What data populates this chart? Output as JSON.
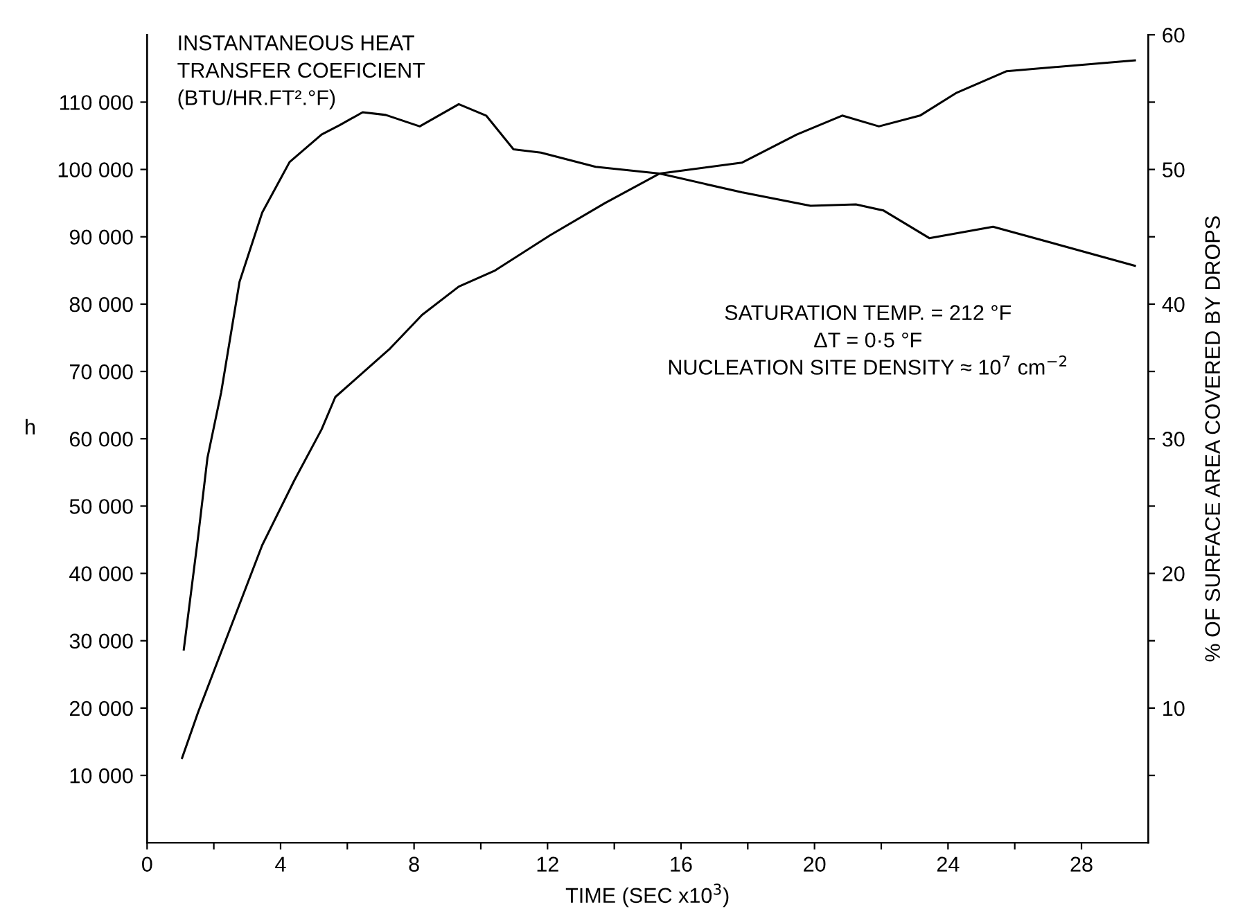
{
  "chart_data": {
    "type": "line",
    "xlabel": "TIME (SEC x10$^{3}$)",
    "ylabel": "h",
    "y2label": "% OF SURFACE AREA COVERED BY DROPS",
    "annotations": [
      "INSTANTANEOUS HEAT\nTRANSFER COEFICIENT\n(BTU/HR.FT².°F)",
      "SATURATION TEMP. = 212 °F\nΔT = 0·5 °F\nNUCLEATION SITE DENSITY ≈ 10$^{7}$ cm$^{−2}$"
    ],
    "series": [
      {
        "color": "#000000",
        "x": [
          1.1,
          1.53,
          1.81,
          2.22,
          2.77,
          3.45,
          4.27,
          5.23,
          5.78,
          6.46,
          7.15,
          8.17,
          9.34,
          10.16,
          10.98,
          11.8,
          13.44,
          15.36,
          17.82,
          19.88,
          21.24,
          22.07,
          23.44,
          25.35,
          29.6
        ],
        "values": [
          28700,
          45500,
          57200,
          66900,
          83300,
          93600,
          101100,
          105200,
          106600,
          108500,
          108100,
          106400,
          109700,
          108000,
          103000,
          102500,
          100400,
          99400,
          96600,
          94600,
          94800,
          93900,
          89800,
          91500,
          85700
        ]
      },
      {
        "color": "#000000",
        "axis": "y2",
        "x": [
          1.05,
          1.53,
          2.49,
          3.45,
          4.41,
          5.23,
          5.64,
          7.28,
          8.24,
          9.34,
          10.43,
          12.07,
          13.72,
          15.36,
          17.82,
          19.47,
          20.83,
          21.93,
          23.16,
          24.26,
          25.76,
          29.6
        ],
        "values": [
          6.3,
          9.7,
          15.9,
          22.1,
          26.9,
          30.7,
          33.1,
          36.7,
          39.2,
          41.3,
          42.5,
          45.1,
          47.5,
          49.7,
          50.5,
          52.6,
          54.0,
          53.2,
          54.0,
          55.7,
          57.3,
          58.1
        ]
      }
    ],
    "xlim": [
      0,
      30
    ],
    "xticks": [
      0,
      {
        "value": 2,
        "label": null
      },
      4,
      {
        "value": 6,
        "label": null
      },
      8,
      {
        "value": 10,
        "label": null
      },
      12,
      {
        "value": 14,
        "label": null
      },
      16,
      {
        "value": 18,
        "label": null
      },
      20,
      {
        "value": 22,
        "label": null
      },
      24,
      {
        "value": 26,
        "label": null
      },
      28
    ],
    "ylim": [
      0,
      120000
    ],
    "yticks": [
      {
        "value": 10000,
        "label": "10 000"
      },
      {
        "value": 20000,
        "label": "20 000"
      },
      {
        "value": 30000,
        "label": "30 000"
      },
      {
        "value": 40000,
        "label": "40 000"
      },
      {
        "value": 50000,
        "label": "50 000"
      },
      {
        "value": 60000,
        "label": "60 000"
      },
      {
        "value": 70000,
        "label": "70 000"
      },
      {
        "value": 80000,
        "label": "80 000"
      },
      {
        "value": 90000,
        "label": "90 000"
      },
      {
        "value": 100000,
        "label": "100 000"
      },
      {
        "value": 110000,
        "label": "110 000"
      }
    ],
    "y2lim": [
      0,
      60
    ],
    "y2ticks": [
      {
        "value": 5,
        "label": null
      },
      10,
      {
        "value": 15,
        "label": null
      },
      20,
      {
        "value": 25,
        "label": null
      },
      30,
      {
        "value": 35,
        "label": null
      },
      40,
      {
        "value": 45,
        "label": null
      },
      50,
      {
        "value": 55,
        "label": null
      },
      60
    ],
    "grid": false,
    "legend": false,
    "marker": "none",
    "line_style": "solid"
  }
}
